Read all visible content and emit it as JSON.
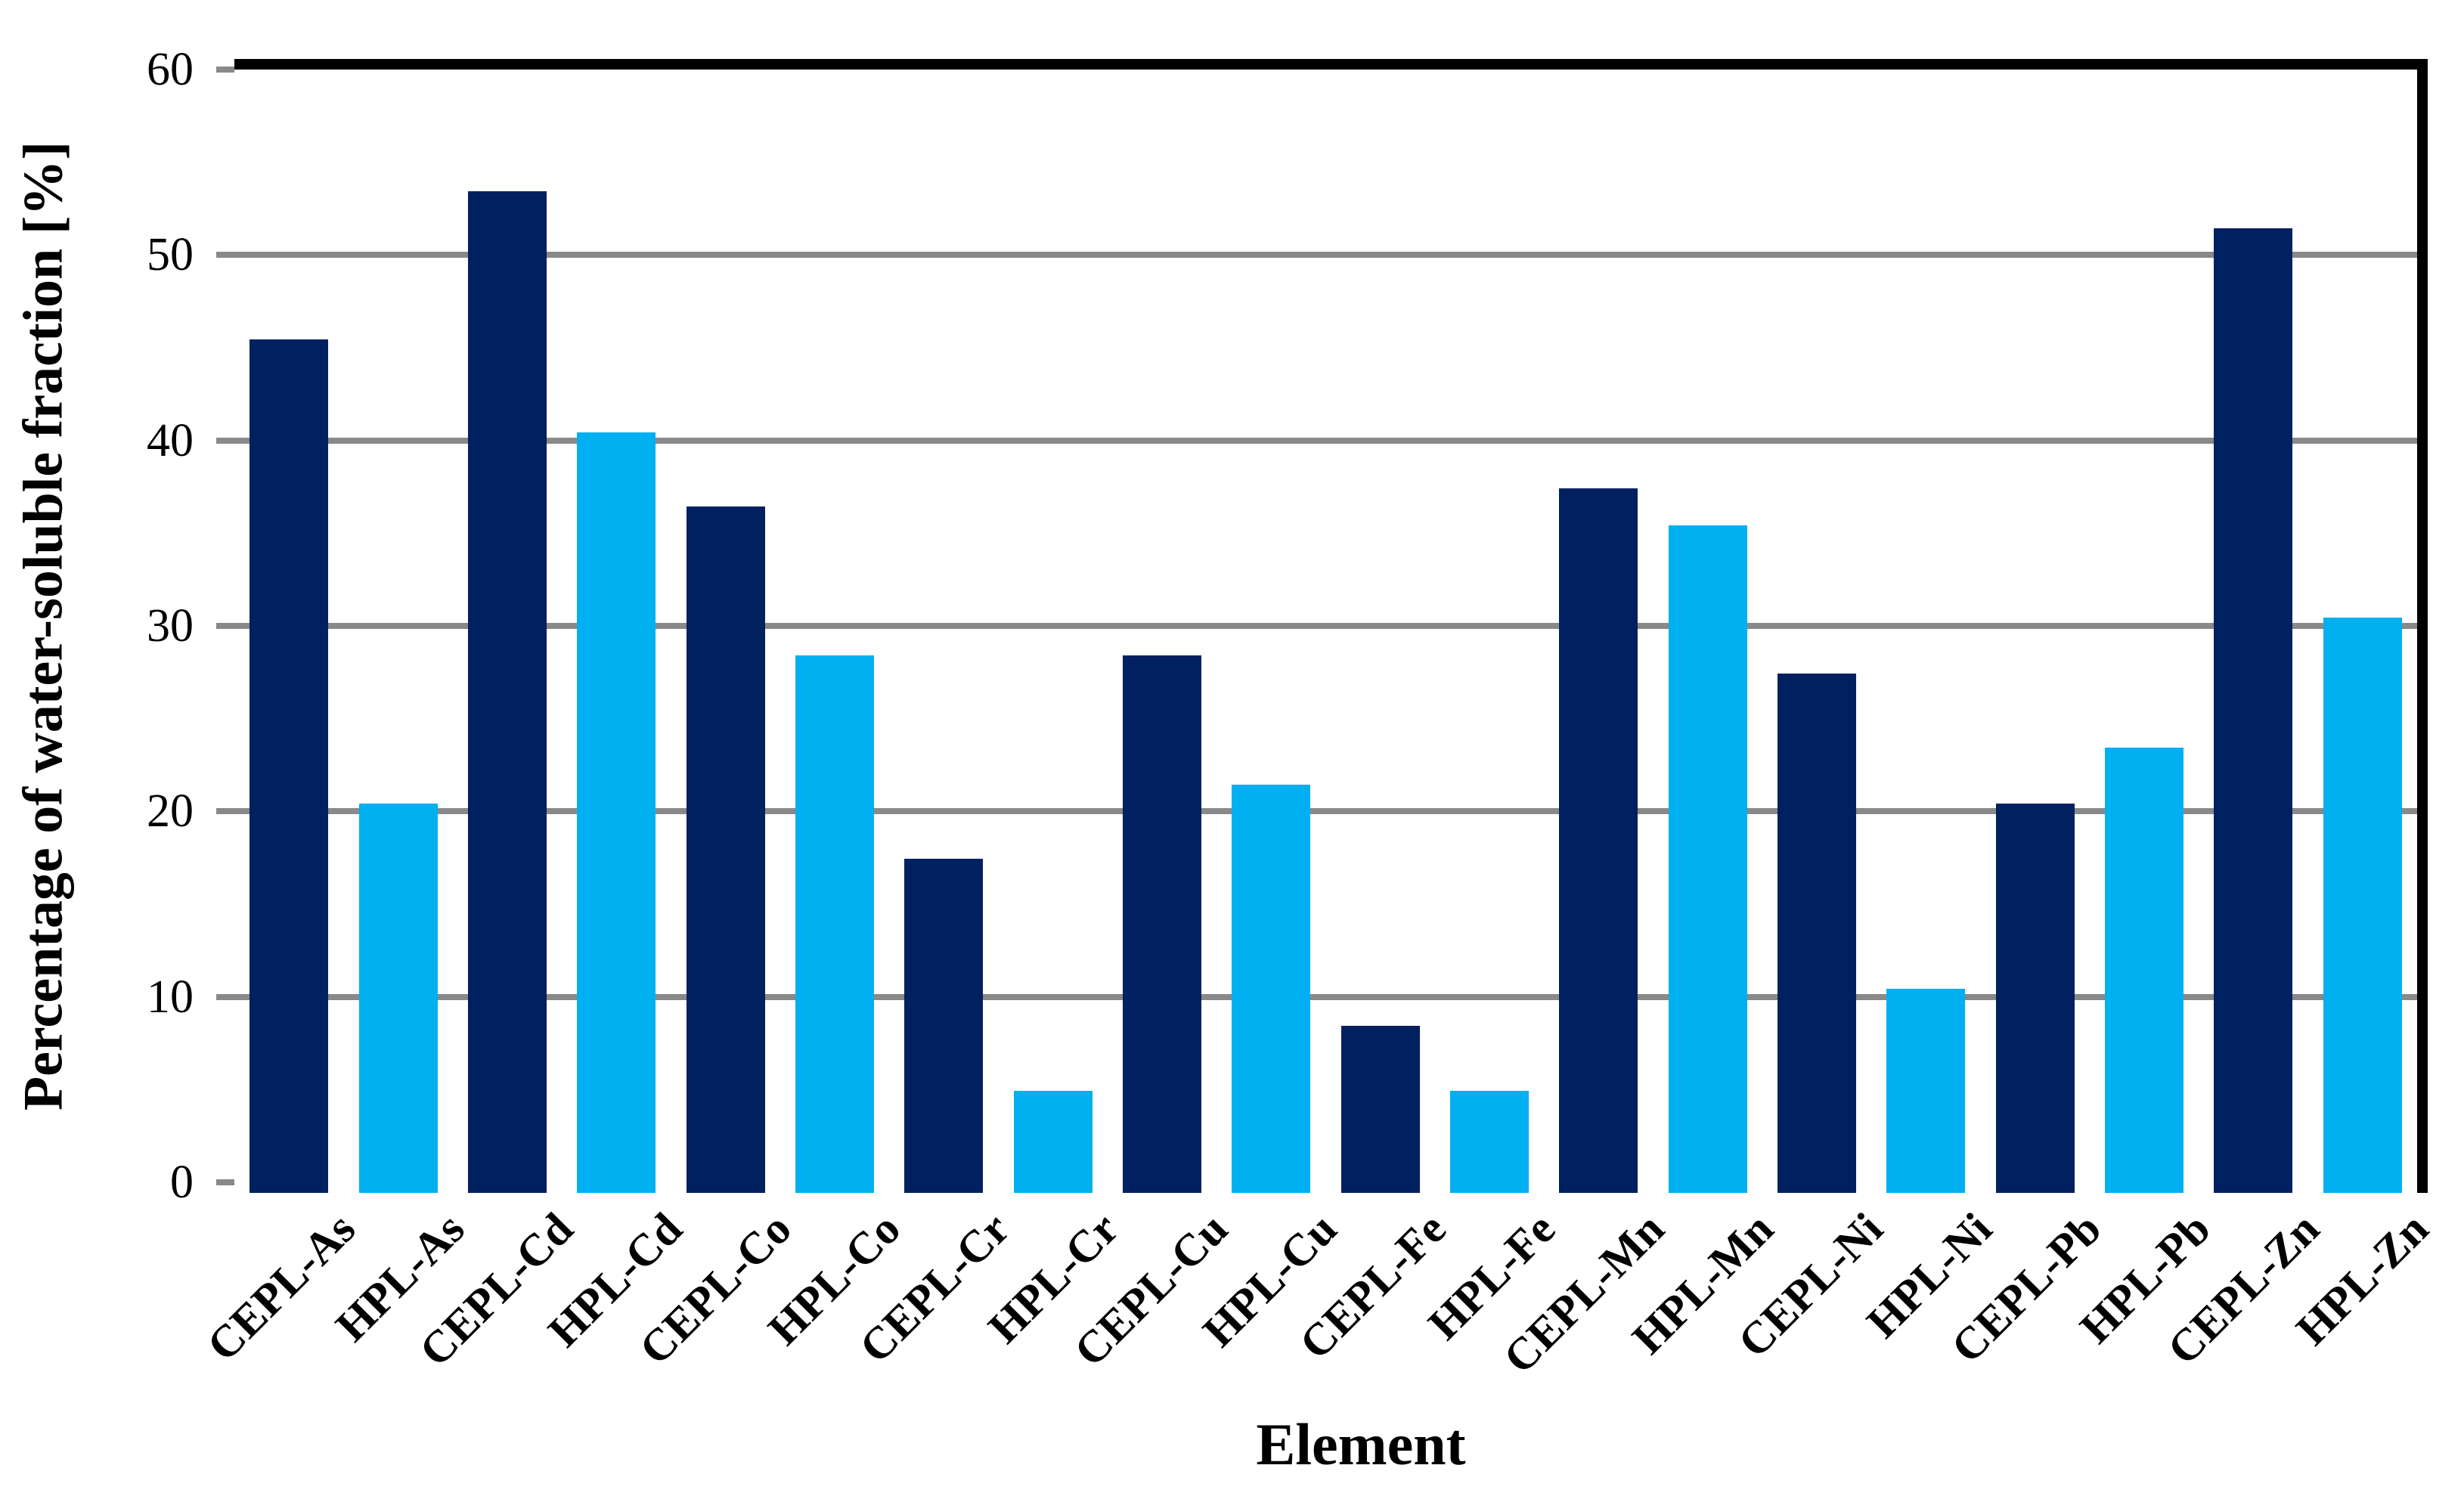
{
  "chart_data": {
    "type": "bar",
    "title": "",
    "xlabel": "Element",
    "ylabel": "Percentage of water-soluble fraction [%]",
    "categories": [
      "CEPL-As",
      "HPL-As",
      "CEPL-Cd",
      "HPL-Cd",
      "CEPL-Co",
      "HPL-Co",
      "CEPL-Cr",
      "HPL-Cr",
      "CEPL-Cu",
      "HPL-Cu",
      "CEPL-Fe",
      "HPL-Fe",
      "CEPL-Mn",
      "HPL-Mn",
      "CEPL-Ni",
      "HPL-Ni",
      "CEPL-Pb",
      "HPL-Pb",
      "CEPL-Zn",
      "HPL-Zn"
    ],
    "values": [
      46,
      21,
      54,
      41,
      37,
      29,
      18,
      5.5,
      29,
      22,
      9,
      5.5,
      38,
      36,
      28,
      11,
      21,
      24,
      52,
      31
    ],
    "ylim": [
      0,
      60
    ],
    "yticks": [
      0,
      10,
      20,
      30,
      40,
      50,
      60
    ],
    "ytick_labels": [
      "0",
      "10",
      "20",
      "30",
      "40",
      "50",
      "60"
    ],
    "grid": "horizontal-gridlines-on",
    "legend_position": "none",
    "bar_color_pattern": [
      "#002060",
      "#00B0F0"
    ],
    "bar_color_pattern_names": [
      "dark-navy (CEPL bars)",
      "light-blue (HPL bars)"
    ]
  },
  "colors": {
    "background": "#ffffff",
    "gridline_gray": "#898989",
    "axis_gray": "#898989",
    "plot_border_black": "#000000",
    "text_black": "#000000"
  }
}
